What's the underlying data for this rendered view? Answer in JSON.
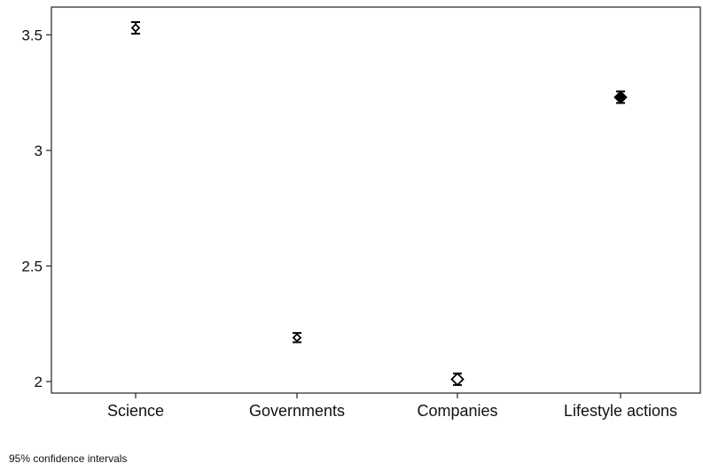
{
  "chart_data": {
    "type": "scatter",
    "categories": [
      "Science",
      "Governments",
      "Companies",
      "Lifestyle actions"
    ],
    "series": [
      {
        "values": [
          3.53,
          2.19,
          2.01,
          3.23
        ],
        "ci_lower": [
          3.505,
          2.17,
          1.985,
          3.205
        ],
        "ci_upper": [
          3.555,
          2.21,
          2.035,
          3.255
        ],
        "markers": [
          "small-diamond",
          "small-diamond",
          "hollow-diamond",
          "filled-diamond"
        ]
      }
    ],
    "ylim": [
      1.95,
      3.62
    ],
    "yticks": [
      2,
      2.5,
      3,
      3.5
    ],
    "ytick_labels": [
      "2",
      "2.5",
      "3",
      "3.5"
    ],
    "grid": false,
    "xlabel": "",
    "ylabel": "",
    "title": ""
  },
  "note": "95% confidence intervals"
}
